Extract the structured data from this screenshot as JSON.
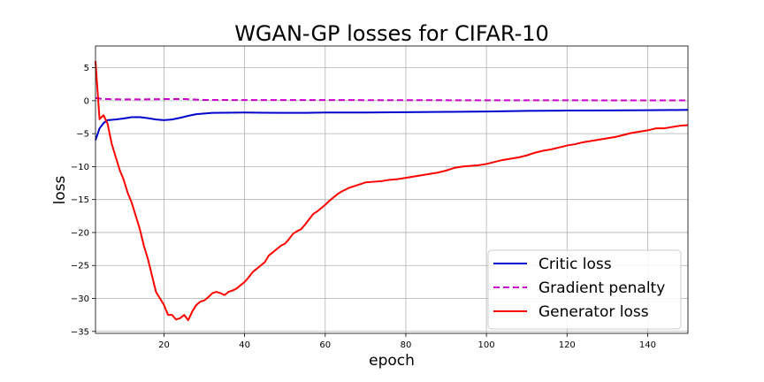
{
  "chart_data": {
    "type": "line",
    "title": "WGAN-GP losses for CIFAR-10",
    "xlabel": "epoch",
    "ylabel": "loss",
    "xlim": [
      3,
      150
    ],
    "ylim": [
      -35.3,
      8.3
    ],
    "grid": true,
    "legend_position": "lower-right",
    "x_ticks": [
      20,
      40,
      60,
      80,
      100,
      120,
      140
    ],
    "y_ticks": [
      5,
      0,
      -5,
      -10,
      -15,
      -20,
      -25,
      -30,
      -35
    ],
    "x_tick_labels": [
      "20",
      "40",
      "60",
      "80",
      "100",
      "120",
      "140"
    ],
    "y_tick_labels": [
      "5",
      "0",
      "−5",
      "−10",
      "−15",
      "−20",
      "−25",
      "−30",
      "−35"
    ],
    "series": [
      {
        "name": "Critic loss",
        "color": "#0000cc",
        "style": "solid",
        "points": [
          [
            3,
            -6.0
          ],
          [
            4,
            -4.2
          ],
          [
            5,
            -3.4
          ],
          [
            6,
            -2.95
          ],
          [
            8,
            -2.85
          ],
          [
            10,
            -2.7
          ],
          [
            12,
            -2.5
          ],
          [
            14,
            -2.5
          ],
          [
            16,
            -2.65
          ],
          [
            18,
            -2.85
          ],
          [
            20,
            -2.95
          ],
          [
            22,
            -2.85
          ],
          [
            24,
            -2.6
          ],
          [
            26,
            -2.3
          ],
          [
            28,
            -2.05
          ],
          [
            30,
            -1.95
          ],
          [
            32,
            -1.85
          ],
          [
            35,
            -1.82
          ],
          [
            40,
            -1.8
          ],
          [
            45,
            -1.82
          ],
          [
            50,
            -1.85
          ],
          [
            55,
            -1.85
          ],
          [
            60,
            -1.8
          ],
          [
            70,
            -1.8
          ],
          [
            80,
            -1.75
          ],
          [
            90,
            -1.7
          ],
          [
            100,
            -1.65
          ],
          [
            110,
            -1.55
          ],
          [
            120,
            -1.5
          ],
          [
            130,
            -1.48
          ],
          [
            140,
            -1.45
          ],
          [
            150,
            -1.4
          ]
        ]
      },
      {
        "name": "Gradient penalty",
        "color": "#cc00cc",
        "style": "dashed",
        "points": [
          [
            3,
            0.4
          ],
          [
            5,
            0.25
          ],
          [
            10,
            0.2
          ],
          [
            15,
            0.2
          ],
          [
            20,
            0.25
          ],
          [
            25,
            0.25
          ],
          [
            30,
            0.12
          ],
          [
            40,
            0.1
          ],
          [
            60,
            0.1
          ],
          [
            80,
            0.08
          ],
          [
            100,
            0.07
          ],
          [
            120,
            0.06
          ],
          [
            150,
            0.05
          ]
        ]
      },
      {
        "name": "Generator loss",
        "color": "#ff0000",
        "style": "solid",
        "points": [
          [
            3,
            6.0
          ],
          [
            4,
            -2.8
          ],
          [
            5,
            -2.2
          ],
          [
            6,
            -3.5
          ],
          [
            7,
            -6.5
          ],
          [
            8,
            -8.5
          ],
          [
            9,
            -10.5
          ],
          [
            10,
            -12.0
          ],
          [
            11,
            -14.0
          ],
          [
            12,
            -15.5
          ],
          [
            13,
            -17.5
          ],
          [
            14,
            -19.5
          ],
          [
            15,
            -22.0
          ],
          [
            16,
            -24.0
          ],
          [
            17,
            -26.5
          ],
          [
            18,
            -29.0
          ],
          [
            19,
            -30.0
          ],
          [
            20,
            -31.0
          ],
          [
            21,
            -32.5
          ],
          [
            22,
            -32.5
          ],
          [
            23,
            -33.2
          ],
          [
            24,
            -33.0
          ],
          [
            25,
            -32.5
          ],
          [
            26,
            -33.3
          ],
          [
            27,
            -32.0
          ],
          [
            28,
            -31.0
          ],
          [
            29,
            -30.5
          ],
          [
            30,
            -30.3
          ],
          [
            31,
            -29.8
          ],
          [
            32,
            -29.2
          ],
          [
            33,
            -29.0
          ],
          [
            34,
            -29.2
          ],
          [
            35,
            -29.5
          ],
          [
            36,
            -29.0
          ],
          [
            37,
            -28.8
          ],
          [
            38,
            -28.5
          ],
          [
            39,
            -28.0
          ],
          [
            40,
            -27.5
          ],
          [
            41,
            -26.8
          ],
          [
            42,
            -26.0
          ],
          [
            43,
            -25.5
          ],
          [
            44,
            -25.0
          ],
          [
            45,
            -24.5
          ],
          [
            46,
            -23.5
          ],
          [
            47,
            -23.0
          ],
          [
            48,
            -22.5
          ],
          [
            49,
            -22.0
          ],
          [
            50,
            -21.7
          ],
          [
            51,
            -21.0
          ],
          [
            52,
            -20.2
          ],
          [
            53,
            -19.8
          ],
          [
            54,
            -19.5
          ],
          [
            55,
            -18.8
          ],
          [
            56,
            -18.0
          ],
          [
            57,
            -17.2
          ],
          [
            58,
            -16.8
          ],
          [
            59,
            -16.3
          ],
          [
            60,
            -15.8
          ],
          [
            61,
            -15.2
          ],
          [
            62,
            -14.7
          ],
          [
            63,
            -14.2
          ],
          [
            64,
            -13.8
          ],
          [
            65,
            -13.5
          ],
          [
            66,
            -13.2
          ],
          [
            67,
            -13.0
          ],
          [
            68,
            -12.8
          ],
          [
            69,
            -12.6
          ],
          [
            70,
            -12.4
          ],
          [
            72,
            -12.3
          ],
          [
            74,
            -12.2
          ],
          [
            76,
            -12.0
          ],
          [
            78,
            -11.9
          ],
          [
            80,
            -11.7
          ],
          [
            82,
            -11.5
          ],
          [
            84,
            -11.3
          ],
          [
            86,
            -11.1
          ],
          [
            88,
            -10.9
          ],
          [
            90,
            -10.6
          ],
          [
            92,
            -10.2
          ],
          [
            94,
            -10.0
          ],
          [
            96,
            -9.9
          ],
          [
            98,
            -9.8
          ],
          [
            100,
            -9.6
          ],
          [
            102,
            -9.3
          ],
          [
            104,
            -9.0
          ],
          [
            106,
            -8.8
          ],
          [
            108,
            -8.6
          ],
          [
            110,
            -8.3
          ],
          [
            112,
            -7.9
          ],
          [
            114,
            -7.6
          ],
          [
            116,
            -7.4
          ],
          [
            118,
            -7.1
          ],
          [
            120,
            -6.8
          ],
          [
            122,
            -6.6
          ],
          [
            124,
            -6.3
          ],
          [
            126,
            -6.1
          ],
          [
            128,
            -5.9
          ],
          [
            130,
            -5.7
          ],
          [
            132,
            -5.5
          ],
          [
            134,
            -5.2
          ],
          [
            136,
            -4.9
          ],
          [
            138,
            -4.7
          ],
          [
            140,
            -4.5
          ],
          [
            142,
            -4.2
          ],
          [
            144,
            -4.2
          ],
          [
            146,
            -4.0
          ],
          [
            148,
            -3.8
          ],
          [
            150,
            -3.7
          ]
        ]
      }
    ]
  }
}
